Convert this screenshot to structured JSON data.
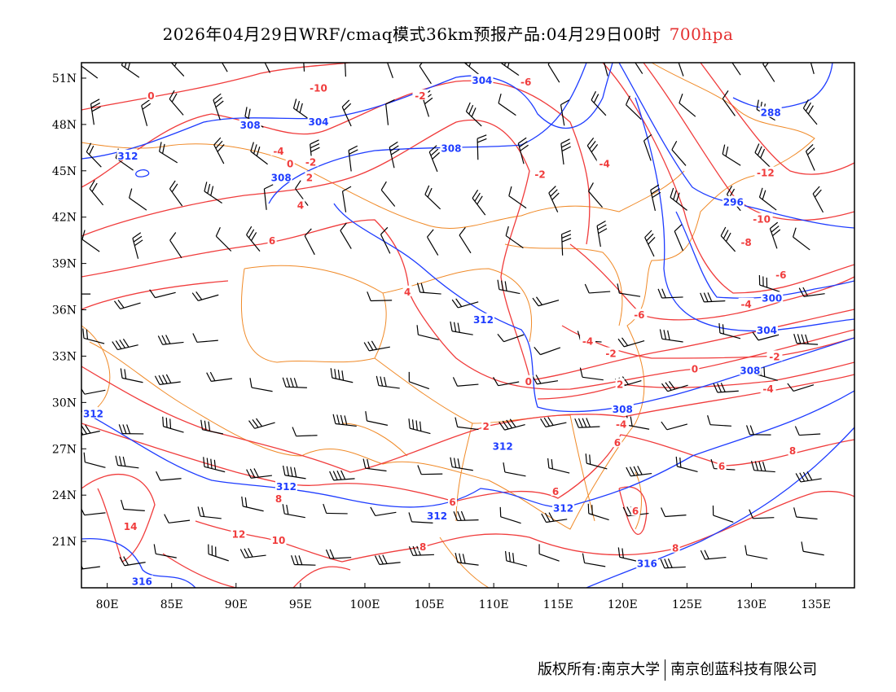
{
  "title": {
    "main": "2026年04月29日WRF/cmaq模式36km预报产品:04月29日00时",
    "level": "700hpa"
  },
  "footer": {
    "copyright": "版权所有:南京大学",
    "company": "南京创蓝科技有限公司"
  },
  "colors": {
    "temperature_contour": "#f03c3c",
    "height_contour": "#1e3cff",
    "border": "#f08a28",
    "wind_barb": "#000000"
  },
  "map": {
    "lon_range": [
      78,
      138
    ],
    "lat_range": [
      18,
      52
    ],
    "lon_ticks": [
      {
        "value": 80,
        "label": "80E"
      },
      {
        "value": 85,
        "label": "85E"
      },
      {
        "value": 90,
        "label": "90E"
      },
      {
        "value": 95,
        "label": "95E"
      },
      {
        "value": 100,
        "label": "100E"
      },
      {
        "value": 105,
        "label": "105E"
      },
      {
        "value": 110,
        "label": "110E"
      },
      {
        "value": 115,
        "label": "115E"
      },
      {
        "value": 120,
        "label": "120E"
      },
      {
        "value": 125,
        "label": "125E"
      },
      {
        "value": 130,
        "label": "130E"
      },
      {
        "value": 135,
        "label": "135E"
      }
    ],
    "lat_ticks": [
      {
        "value": 21,
        "label": "21N"
      },
      {
        "value": 24,
        "label": "24N"
      },
      {
        "value": 27,
        "label": "27N"
      },
      {
        "value": 30,
        "label": "30N"
      },
      {
        "value": 33,
        "label": "33N"
      },
      {
        "value": 36,
        "label": "36N"
      },
      {
        "value": 39,
        "label": "39N"
      },
      {
        "value": 42,
        "label": "42N"
      },
      {
        "value": 45,
        "label": "45N"
      },
      {
        "value": 48,
        "label": "48N"
      },
      {
        "value": 51,
        "label": "51N"
      }
    ],
    "height_labels": [
      {
        "t": "304",
        "lon": 109.1,
        "lat": 50.9
      },
      {
        "t": "308",
        "lon": 91.1,
        "lat": 48.0
      },
      {
        "t": "304",
        "lon": 96.4,
        "lat": 48.2
      },
      {
        "t": "312",
        "lon": 81.6,
        "lat": 46.0
      },
      {
        "t": "308",
        "lon": 106.7,
        "lat": 46.5
      },
      {
        "t": "308",
        "lon": 93.5,
        "lat": 44.6
      },
      {
        "t": "288",
        "lon": 131.5,
        "lat": 48.8
      },
      {
        "t": "296",
        "lon": 128.6,
        "lat": 43.0
      },
      {
        "t": "300",
        "lon": 131.6,
        "lat": 36.8
      },
      {
        "t": "304",
        "lon": 131.2,
        "lat": 34.7
      },
      {
        "t": "308",
        "lon": 129.9,
        "lat": 32.1
      },
      {
        "t": "312",
        "lon": 109.2,
        "lat": 35.4
      },
      {
        "t": "308",
        "lon": 120.0,
        "lat": 29.6
      },
      {
        "t": "312",
        "lon": 110.7,
        "lat": 27.2
      },
      {
        "t": "312",
        "lon": 93.9,
        "lat": 24.6
      },
      {
        "t": "312",
        "lon": 105.6,
        "lat": 22.7
      },
      {
        "t": "312",
        "lon": 115.4,
        "lat": 23.2
      },
      {
        "t": "316",
        "lon": 121.9,
        "lat": 19.6
      },
      {
        "t": "316",
        "lon": 82.7,
        "lat": 18.2
      },
      {
        "t": "312",
        "lon": 78.6,
        "lat": 29.3
      }
    ],
    "temperature_labels": [
      {
        "t": "0",
        "lon": 83.4,
        "lat": 49.9
      },
      {
        "t": "-10",
        "lon": 96.4,
        "lat": 50.4
      },
      {
        "t": "-2",
        "lon": 104.3,
        "lat": 49.9
      },
      {
        "t": "-6",
        "lon": 112.5,
        "lat": 50.8
      },
      {
        "t": "-4",
        "lon": 93.3,
        "lat": 46.3
      },
      {
        "t": "0",
        "lon": 94.2,
        "lat": 45.5
      },
      {
        "t": "-2",
        "lon": 95.8,
        "lat": 45.6
      },
      {
        "t": "2",
        "lon": 95.7,
        "lat": 44.6
      },
      {
        "t": "4",
        "lon": 95.0,
        "lat": 42.8
      },
      {
        "t": "6",
        "lon": 92.8,
        "lat": 40.5
      },
      {
        "t": "-2",
        "lon": 113.6,
        "lat": 44.8
      },
      {
        "t": "-4",
        "lon": 118.6,
        "lat": 45.5
      },
      {
        "t": "-12",
        "lon": 131.1,
        "lat": 44.9
      },
      {
        "t": "-10",
        "lon": 130.8,
        "lat": 41.9
      },
      {
        "t": "-8",
        "lon": 129.6,
        "lat": 40.4
      },
      {
        "t": "-6",
        "lon": 132.3,
        "lat": 38.3
      },
      {
        "t": "-4",
        "lon": 129.6,
        "lat": 36.4
      },
      {
        "t": "-6",
        "lon": 121.3,
        "lat": 35.7
      },
      {
        "t": "4",
        "lon": 103.3,
        "lat": 37.2
      },
      {
        "t": "-4",
        "lon": 117.3,
        "lat": 34.0
      },
      {
        "t": "-2",
        "lon": 119.1,
        "lat": 33.2
      },
      {
        "t": "2",
        "lon": 119.8,
        "lat": 31.2
      },
      {
        "t": "0",
        "lon": 112.7,
        "lat": 31.4
      },
      {
        "t": "0",
        "lon": 125.6,
        "lat": 32.2
      },
      {
        "t": "-2",
        "lon": 131.8,
        "lat": 33.0
      },
      {
        "t": "-4",
        "lon": 131.3,
        "lat": 31.4
      },
      {
        "t": "-4",
        "lon": 119.9,
        "lat": 29.1
      },
      {
        "t": "2",
        "lon": 109.4,
        "lat": 28.5
      },
      {
        "t": "6",
        "lon": 119.6,
        "lat": 27.9
      },
      {
        "t": "6",
        "lon": 127.7,
        "lat": 25.9
      },
      {
        "t": "8",
        "lon": 133.2,
        "lat": 26.9
      },
      {
        "t": "8",
        "lon": 93.3,
        "lat": 23.8
      },
      {
        "t": "6",
        "lon": 106.8,
        "lat": 23.6
      },
      {
        "t": "6",
        "lon": 114.8,
        "lat": 23.8
      },
      {
        "t": "6",
        "lon": 121.0,
        "lat": 23.0
      },
      {
        "t": "14",
        "lon": 81.8,
        "lat": 22.0
      },
      {
        "t": "12",
        "lon": 90.2,
        "lat": 21.5
      },
      {
        "t": "10",
        "lon": 93.3,
        "lat": 21.1
      },
      {
        "t": "8",
        "lon": 104.5,
        "lat": 20.7
      },
      {
        "t": "8",
        "lon": 124.1,
        "lat": 20.6
      }
    ]
  }
}
